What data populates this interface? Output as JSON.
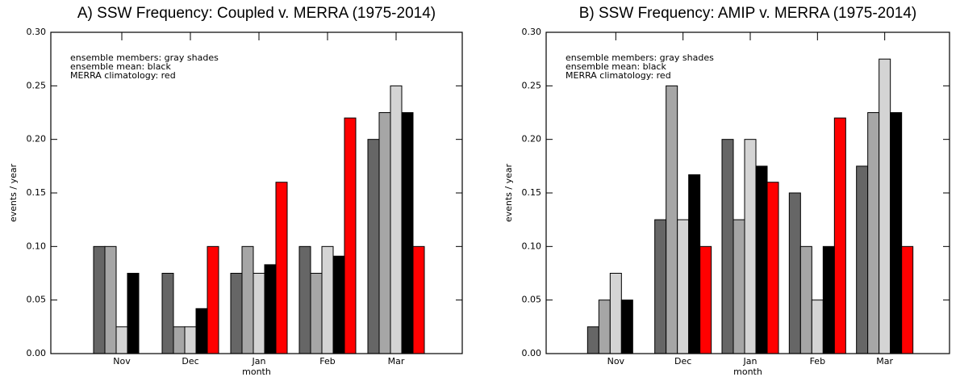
{
  "chart_data": [
    {
      "type": "bar",
      "title": "A) SSW Frequency: Coupled v. MERRA (1975-2014)",
      "annotations": [
        "ensemble members: gray shades",
        "ensemble mean: black",
        "MERRA climatology: red"
      ],
      "x_label": "month",
      "y_label": "events / year",
      "categories": [
        "Nov",
        "Dec",
        "Jan",
        "Feb",
        "Mar"
      ],
      "series": [
        {
          "color": "#666666",
          "values": [
            0.1,
            0.075,
            0.075,
            0.1,
            0.2
          ]
        },
        {
          "color": "#a6a6a6",
          "values": [
            0.1,
            0.025,
            0.1,
            0.075,
            0.225
          ]
        },
        {
          "color": "#d4d4d4",
          "values": [
            0.025,
            0.025,
            0.075,
            0.1,
            0.25
          ]
        },
        {
          "color": "#000000",
          "values": [
            0.075,
            0.042,
            0.083,
            0.091,
            0.225
          ]
        },
        {
          "color": "#ff0000",
          "values": [
            0,
            0.1,
            0.16,
            0.22,
            0.1
          ]
        }
      ],
      "ylim": [
        0,
        0.3
      ],
      "yticks": [
        {
          "value": 0,
          "label": "0.00"
        },
        {
          "value": 0.05,
          "label": "0.05"
        },
        {
          "value": 0.1,
          "label": "0.10"
        },
        {
          "value": 0.15,
          "label": "0.15"
        },
        {
          "value": 0.2,
          "label": "0.20"
        },
        {
          "value": 0.25,
          "label": "0.25"
        },
        {
          "value": 0.3,
          "label": "0.30"
        }
      ]
    },
    {
      "type": "bar",
      "title": "B) SSW Frequency: AMIP v. MERRA (1975-2014)",
      "annotations": [
        "ensemble members: gray shades",
        "ensemble mean: black",
        "MERRA climatology: red"
      ],
      "x_label": "month",
      "y_label": "events / year",
      "categories": [
        "Nov",
        "Dec",
        "Jan",
        "Feb",
        "Mar"
      ],
      "series": [
        {
          "color": "#666666",
          "values": [
            0.025,
            0.125,
            0.2,
            0.15,
            0.175
          ]
        },
        {
          "color": "#a6a6a6",
          "values": [
            0.05,
            0.25,
            0.125,
            0.1,
            0.225
          ]
        },
        {
          "color": "#d4d4d4",
          "values": [
            0.075,
            0.125,
            0.2,
            0.05,
            0.275
          ]
        },
        {
          "color": "#000000",
          "values": [
            0.05,
            0.167,
            0.175,
            0.1,
            0.225
          ]
        },
        {
          "color": "#ff0000",
          "values": [
            0,
            0.1,
            0.16,
            0.22,
            0.1
          ]
        }
      ],
      "ylim": [
        0,
        0.3
      ],
      "yticks": [
        {
          "value": 0,
          "label": "0.00"
        },
        {
          "value": 0.05,
          "label": "0.05"
        },
        {
          "value": 0.1,
          "label": "0.10"
        },
        {
          "value": 0.15,
          "label": "0.15"
        },
        {
          "value": 0.2,
          "label": "0.20"
        },
        {
          "value": 0.25,
          "label": "0.25"
        },
        {
          "value": 0.3,
          "label": "0.30"
        }
      ]
    }
  ]
}
